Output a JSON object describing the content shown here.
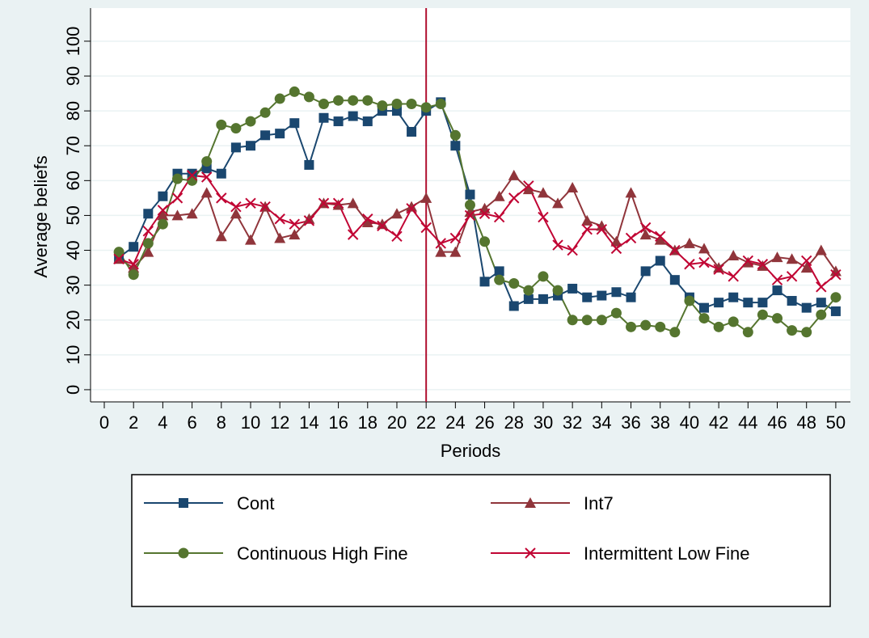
{
  "chart_data": {
    "type": "line",
    "x_label": "Periods",
    "y_label": "Average beliefs",
    "x": [
      1,
      2,
      3,
      4,
      5,
      6,
      7,
      8,
      9,
      10,
      11,
      12,
      13,
      14,
      15,
      16,
      17,
      18,
      19,
      20,
      21,
      22,
      23,
      24,
      25,
      26,
      27,
      28,
      29,
      30,
      31,
      32,
      33,
      34,
      35,
      36,
      37,
      38,
      39,
      40,
      41,
      42,
      43,
      44,
      45,
      46,
      47,
      48,
      49,
      50
    ],
    "series": [
      {
        "name": "Cont",
        "color": "#1a476f",
        "marker": "square",
        "values": [
          38,
          41,
          50.5,
          55.5,
          62,
          62,
          63.5,
          62,
          69.5,
          70,
          73,
          73.5,
          76.5,
          64.5,
          78,
          77,
          78.5,
          77,
          80,
          80,
          74,
          80,
          82.5,
          70,
          56,
          31,
          34,
          24,
          26,
          26,
          27,
          29,
          26.5,
          27,
          28,
          26.5,
          34,
          37,
          31.5,
          26.5,
          23.5,
          25,
          26.5,
          25,
          25,
          28.5,
          25.5,
          23.5,
          25,
          22.5
        ]
      },
      {
        "name": "Int7",
        "color": "#90353b",
        "marker": "triangle",
        "values": [
          37.5,
          35,
          39.5,
          50,
          50,
          50.5,
          56.5,
          44,
          50.5,
          43,
          52.5,
          43.5,
          44.5,
          49,
          53.5,
          53,
          53.5,
          48,
          47.5,
          50.5,
          52.5,
          55,
          39.5,
          39.5,
          51,
          52,
          55.5,
          61.5,
          57.5,
          56.5,
          53.5,
          58,
          48.5,
          47,
          42.5,
          56.5,
          44.5,
          43,
          40,
          42,
          40.5,
          35,
          38.5,
          36.5,
          35.5,
          38,
          37.5,
          35,
          40,
          34
        ]
      },
      {
        "name": "Continuous High Fine",
        "color": "#55752f",
        "marker": "circle",
        "values": [
          39.5,
          33,
          42,
          47.5,
          60.5,
          60,
          65.5,
          76,
          75,
          77,
          79.5,
          83.5,
          85.5,
          84,
          82,
          83,
          83,
          83,
          81.5,
          82,
          82,
          81,
          82,
          73,
          53,
          42.5,
          31.5,
          30.5,
          28.5,
          32.5,
          28.5,
          20,
          20,
          20,
          22,
          18,
          18.5,
          18,
          16.5,
          25.5,
          20.5,
          18,
          19.5,
          16.5,
          21.5,
          20.5,
          17,
          16.5,
          21.5,
          26.5
        ]
      },
      {
        "name": "Intermittent Low Fine",
        "color": "#c10534",
        "marker": "x",
        "values": [
          37.5,
          36,
          45.5,
          51.5,
          55,
          61.5,
          61,
          55,
          52.5,
          53.5,
          52.5,
          49,
          47.5,
          48.5,
          53.5,
          53.5,
          44.5,
          49,
          47,
          44,
          52,
          46.5,
          42,
          43.5,
          50,
          50.5,
          49.5,
          55,
          58.5,
          49.5,
          41.5,
          40,
          46,
          46,
          40.5,
          43.5,
          46.5,
          44,
          40,
          36,
          36.5,
          34.5,
          32.5,
          37,
          36,
          31.5,
          32.5,
          37,
          29.5,
          33
        ]
      }
    ],
    "xlim": [
      -0.94,
      51
    ],
    "ylim": [
      -3.5,
      109.5
    ],
    "xticks": [
      0,
      2,
      4,
      6,
      8,
      10,
      12,
      14,
      16,
      18,
      20,
      22,
      24,
      26,
      28,
      30,
      32,
      34,
      36,
      38,
      40,
      42,
      44,
      46,
      48,
      50
    ],
    "yticks": [
      0,
      10,
      20,
      30,
      40,
      50,
      60,
      70,
      80,
      90,
      100
    ],
    "vline": 22,
    "vline_color": "#b01030",
    "grid": true
  }
}
